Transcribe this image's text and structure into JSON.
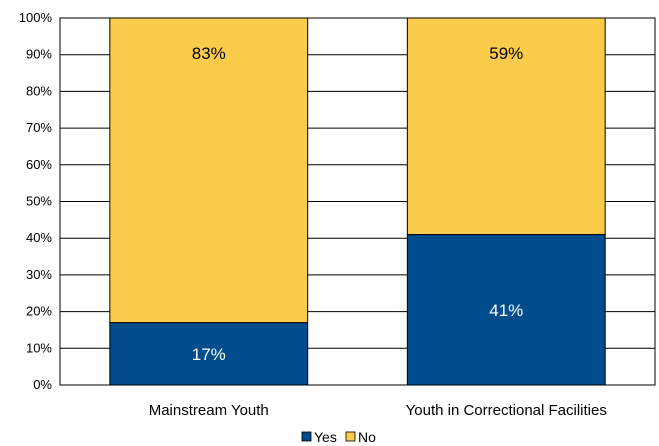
{
  "chart_data": {
    "type": "bar",
    "stacked": true,
    "categories": [
      "Mainstream Youth",
      "Youth in Correctional Facilities"
    ],
    "series": [
      {
        "name": "Yes",
        "values": [
          17,
          41
        ],
        "labels": [
          "17%",
          "41%"
        ],
        "color": "#004C8C",
        "label_color": "#ffffff"
      },
      {
        "name": "No",
        "values": [
          83,
          59
        ],
        "labels": [
          "83%",
          "59%"
        ],
        "color": "#FBCC4C",
        "label_color": "#000000"
      }
    ],
    "ylim": [
      0,
      100
    ],
    "yticks": [
      "0%",
      "10%",
      "20%",
      "30%",
      "40%",
      "50%",
      "60%",
      "70%",
      "80%",
      "90%",
      "100%"
    ],
    "grid": true,
    "legend": "bottom-center"
  }
}
